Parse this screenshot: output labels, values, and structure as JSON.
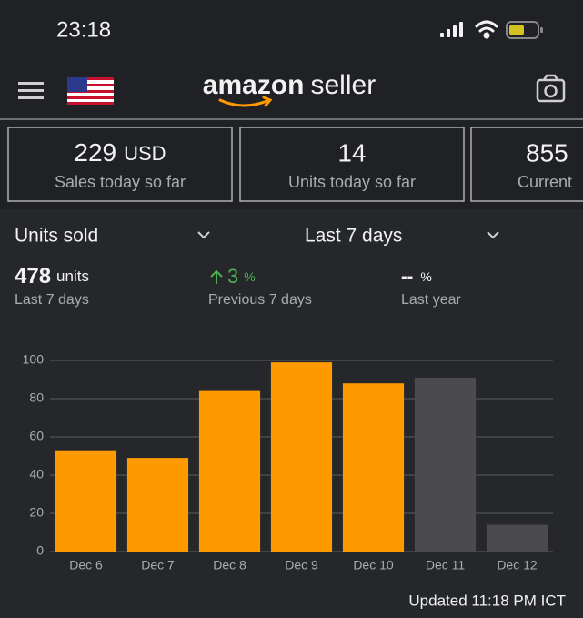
{
  "status_bar": {
    "time": "23:18"
  },
  "header": {
    "brand": "amazon",
    "product": "seller"
  },
  "cards": [
    {
      "value": 229,
      "unit": "USD",
      "label": "Sales today so far"
    },
    {
      "value": 14,
      "label": "Units today so far"
    },
    {
      "value": 855,
      "label": "Current"
    }
  ],
  "filters": {
    "metric": "Units sold",
    "period": "Last 7 days"
  },
  "stats": [
    {
      "value": 478,
      "unit": "units",
      "label": "Last 7 days"
    },
    {
      "value": 3,
      "unit": "%",
      "label": "Previous 7 days"
    },
    {
      "value": "--",
      "unit": "%",
      "label": "Last year"
    }
  ],
  "chart_data": {
    "type": "bar",
    "categories": [
      "Dec 6",
      "Dec 7",
      "Dec 8",
      "Dec 9",
      "Dec 10",
      "Dec 11",
      "Dec 12"
    ],
    "values": [
      53,
      49,
      84,
      99,
      88,
      91,
      14
    ],
    "colors": [
      "#ff9900",
      "#ff9900",
      "#ff9900",
      "#ff9900",
      "#ff9900",
      "#4b4b4d",
      "#4b4b4d"
    ],
    "ylim": [
      0,
      100
    ],
    "yticks": [
      0,
      20,
      40,
      60,
      80,
      100
    ],
    "grid": true
  },
  "footer": {
    "updated": "Updated 11:18 PM ICT"
  }
}
